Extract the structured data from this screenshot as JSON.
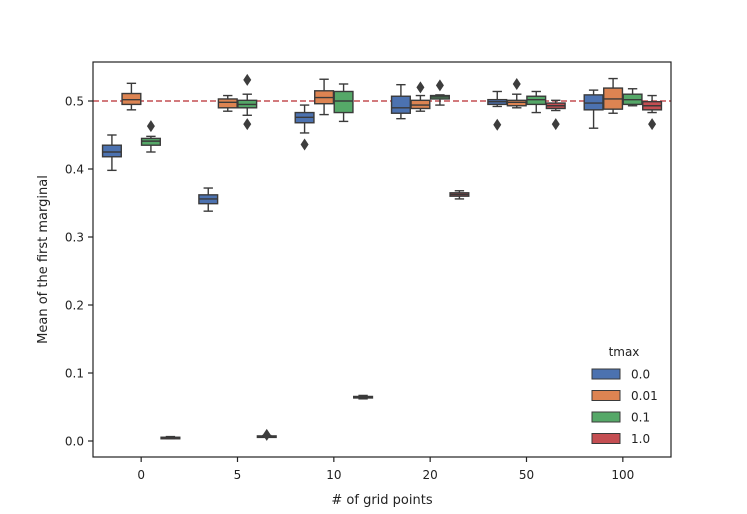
{
  "chart_data": {
    "type": "box",
    "xlabel": "# of grid points",
    "ylabel": "Mean of the first marginal",
    "categories": [
      "0",
      "5",
      "10",
      "20",
      "50",
      "100"
    ],
    "yticks": [
      "0.0",
      "0.1",
      "0.2",
      "0.3",
      "0.4",
      "0.5"
    ],
    "ylim": [
      -0.022,
      0.56
    ],
    "reference_line": {
      "y": 0.5,
      "style": "dashed",
      "color": "#c44e52"
    },
    "legend": {
      "title": "tmax",
      "position": "lower-right"
    },
    "series": [
      {
        "name": "0.0",
        "color": "#4c72b0",
        "boxes": [
          {
            "whislo": 0.398,
            "q1": 0.418,
            "med": 0.425,
            "q3": 0.435,
            "whishi": 0.45,
            "fliers": []
          },
          {
            "whislo": 0.338,
            "q1": 0.349,
            "med": 0.356,
            "q3": 0.362,
            "whishi": 0.372,
            "fliers": []
          },
          {
            "whislo": 0.453,
            "q1": 0.468,
            "med": 0.476,
            "q3": 0.483,
            "whishi": 0.494,
            "fliers": [
              0.436
            ]
          },
          {
            "whislo": 0.474,
            "q1": 0.482,
            "med": 0.49,
            "q3": 0.507,
            "whishi": 0.524,
            "fliers": []
          },
          {
            "whislo": 0.492,
            "q1": 0.495,
            "med": 0.499,
            "q3": 0.502,
            "whishi": 0.514,
            "fliers": [
              0.465
            ]
          },
          {
            "whislo": 0.46,
            "q1": 0.487,
            "med": 0.497,
            "q3": 0.509,
            "whishi": 0.516,
            "fliers": []
          }
        ]
      },
      {
        "name": "0.01",
        "color": "#dd8452",
        "boxes": [
          {
            "whislo": 0.487,
            "q1": 0.495,
            "med": 0.502,
            "q3": 0.511,
            "whishi": 0.526,
            "fliers": []
          },
          {
            "whislo": 0.485,
            "q1": 0.49,
            "med": 0.498,
            "q3": 0.503,
            "whishi": 0.508,
            "fliers": []
          },
          {
            "whislo": 0.48,
            "q1": 0.496,
            "med": 0.505,
            "q3": 0.515,
            "whishi": 0.532,
            "fliers": []
          },
          {
            "whislo": 0.485,
            "q1": 0.489,
            "med": 0.494,
            "q3": 0.501,
            "whishi": 0.508,
            "fliers": [
              0.52
            ]
          },
          {
            "whislo": 0.49,
            "q1": 0.493,
            "med": 0.498,
            "q3": 0.501,
            "whishi": 0.51,
            "fliers": [
              0.525
            ]
          },
          {
            "whislo": 0.482,
            "q1": 0.488,
            "med": 0.503,
            "q3": 0.519,
            "whishi": 0.533,
            "fliers": []
          }
        ]
      },
      {
        "name": "0.1",
        "color": "#55a868",
        "boxes": [
          {
            "whislo": 0.425,
            "q1": 0.435,
            "med": 0.441,
            "q3": 0.445,
            "whishi": 0.448,
            "fliers": [
              0.463
            ]
          },
          {
            "whislo": 0.479,
            "q1": 0.49,
            "med": 0.495,
            "q3": 0.501,
            "whishi": 0.51,
            "fliers": [
              0.531,
              0.466
            ]
          },
          {
            "whislo": 0.47,
            "q1": 0.483,
            "med": 0.5,
            "q3": 0.514,
            "whishi": 0.525,
            "fliers": []
          },
          {
            "whislo": 0.494,
            "q1": 0.503,
            "med": 0.506,
            "q3": 0.508,
            "whishi": 0.509,
            "fliers": [
              0.523
            ]
          },
          {
            "whislo": 0.483,
            "q1": 0.495,
            "med": 0.502,
            "q3": 0.507,
            "whishi": 0.514,
            "fliers": []
          },
          {
            "whislo": 0.493,
            "q1": 0.495,
            "med": 0.502,
            "q3": 0.51,
            "whishi": 0.518,
            "fliers": []
          }
        ]
      },
      {
        "name": "1.0",
        "color": "#c44e52",
        "boxes": [
          {
            "whislo": 0.0035,
            "q1": 0.0045,
            "med": 0.005,
            "q3": 0.0055,
            "whishi": 0.0065,
            "fliers": []
          },
          {
            "whislo": 0.006,
            "q1": 0.0065,
            "med": 0.007,
            "q3": 0.0075,
            "whishi": 0.008,
            "fliers": [
              0.009
            ]
          },
          {
            "whislo": 0.062,
            "q1": 0.0635,
            "med": 0.0645,
            "q3": 0.0655,
            "whishi": 0.067,
            "fliers": []
          },
          {
            "whislo": 0.356,
            "q1": 0.36,
            "med": 0.3625,
            "q3": 0.365,
            "whishi": 0.368,
            "fliers": []
          },
          {
            "whislo": 0.486,
            "q1": 0.489,
            "med": 0.493,
            "q3": 0.497,
            "whishi": 0.501,
            "fliers": [
              0.466
            ]
          },
          {
            "whislo": 0.483,
            "q1": 0.487,
            "med": 0.493,
            "q3": 0.499,
            "whishi": 0.508,
            "fliers": [
              0.466
            ]
          }
        ]
      }
    ]
  }
}
